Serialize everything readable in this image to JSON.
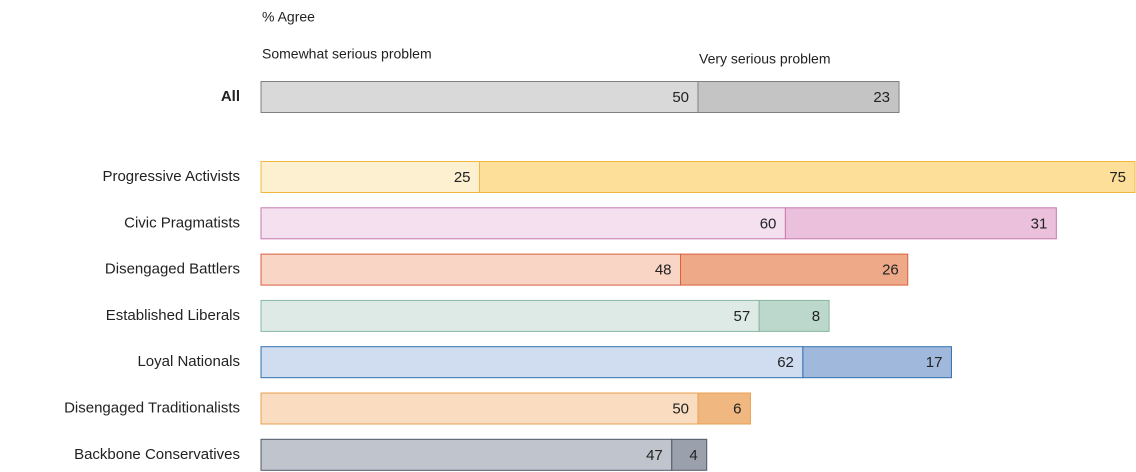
{
  "chart_data": {
    "type": "stacked_barh",
    "subtitle": "% Agree",
    "categories": [
      "All",
      "Progressive Activists",
      "Civic Pragmatists",
      "Disengaged Battlers",
      "Established Liberals",
      "Loyal Nationals",
      "Disengaged Traditionalists",
      "Backbone Conservatives"
    ],
    "edge_colors": [
      "#808080",
      "#f0b840",
      "#c878b0",
      "#d86040",
      "#88b8a0",
      "#3070b0",
      "#e8a050",
      "#505868"
    ],
    "series": [
      {
        "name": "Somewhat serious problem",
        "values": [
          50,
          25,
          60,
          48,
          57,
          62,
          50,
          47
        ],
        "colors": [
          "#d9d9d9",
          "#fdf0d0",
          "#f5e0f0",
          "#f8d5c5",
          "#deeae6",
          "#d0dcf0",
          "#fadcc0",
          "#c0c4cc"
        ]
      },
      {
        "name": "Very serious problem",
        "values": [
          23,
          75,
          31,
          26,
          8,
          17,
          6,
          4
        ],
        "colors": [
          "#c4c4c4",
          "#fddf9a",
          "#eac0dc",
          "#eeaa88",
          "#bcd8cc",
          "#a0b8dc",
          "#f0b880",
          "#9aa0ac"
        ]
      }
    ]
  }
}
